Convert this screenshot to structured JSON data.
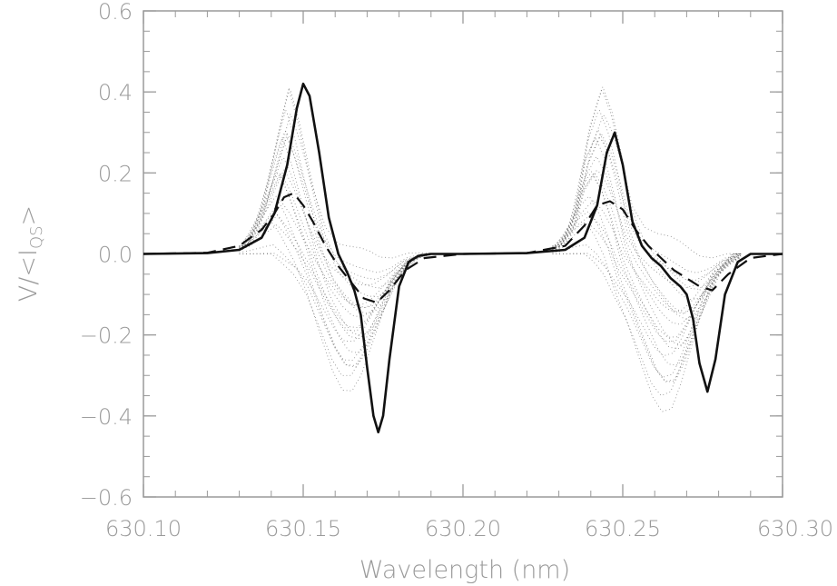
{
  "chart_data": {
    "type": "line",
    "xlabel": "Wavelength (nm)",
    "ylabel": "V/<I_QS>",
    "ylabel_main": "V/<I",
    "ylabel_sub": "QS",
    "ylabel_close": ">",
    "xlim": [
      630.1,
      630.3
    ],
    "ylim": [
      -0.6,
      0.6
    ],
    "x_ticks": [
      630.1,
      630.15,
      630.2,
      630.25,
      630.3
    ],
    "x_tick_labels": [
      "630.10",
      "630.15",
      "630.20",
      "630.25",
      "630.30"
    ],
    "y_ticks": [
      0.6,
      0.4,
      0.2,
      0.0,
      -0.2,
      -0.4,
      -0.6
    ],
    "y_tick_labels": [
      "0.6",
      "0.4",
      "0.2",
      "0.0",
      "−0.2",
      "−0.4",
      "−0.6"
    ],
    "grid": false,
    "legend": "none",
    "series": [
      {
        "style": "solid",
        "x": [
          630.1,
          630.12,
          630.13,
          630.137,
          630.141,
          630.145,
          630.148,
          630.15,
          630.152,
          630.155,
          630.158,
          630.161,
          630.164,
          630.166,
          630.168,
          630.17,
          630.172,
          630.1735,
          630.175,
          630.177,
          630.18,
          630.183,
          630.186,
          630.19,
          630.2,
          630.22,
          630.232,
          630.238,
          630.242,
          630.245,
          630.2475,
          630.25,
          630.253,
          630.256,
          630.259,
          630.262,
          630.265,
          630.268,
          630.27,
          630.272,
          630.274,
          630.2765,
          630.279,
          630.282,
          630.286,
          630.29,
          630.3
        ],
        "y": [
          0.0,
          0.002,
          0.01,
          0.04,
          0.1,
          0.22,
          0.36,
          0.42,
          0.39,
          0.25,
          0.09,
          0.0,
          -0.05,
          -0.09,
          -0.15,
          -0.28,
          -0.4,
          -0.44,
          -0.4,
          -0.26,
          -0.08,
          -0.02,
          -0.005,
          0.0,
          0.0,
          0.002,
          0.01,
          0.04,
          0.12,
          0.25,
          0.3,
          0.22,
          0.08,
          0.02,
          -0.01,
          -0.03,
          -0.06,
          -0.08,
          -0.1,
          -0.16,
          -0.27,
          -0.34,
          -0.26,
          -0.1,
          -0.02,
          0.0,
          0.0
        ]
      },
      {
        "style": "dashed",
        "x": [
          630.1,
          630.12,
          630.13,
          630.137,
          630.141,
          630.144,
          630.147,
          630.15,
          630.153,
          630.157,
          630.161,
          630.165,
          630.169,
          630.173,
          630.177,
          630.182,
          630.188,
          630.2,
          630.22,
          630.232,
          630.238,
          630.242,
          630.246,
          630.25,
          630.254,
          630.258,
          630.262,
          630.266,
          630.27,
          630.274,
          630.278,
          630.283,
          630.29,
          630.3
        ],
        "y": [
          0.0,
          0.003,
          0.02,
          0.06,
          0.1,
          0.14,
          0.15,
          0.12,
          0.08,
          0.02,
          -0.03,
          -0.07,
          -0.11,
          -0.12,
          -0.09,
          -0.04,
          -0.01,
          0.0,
          0.002,
          0.02,
          0.07,
          0.12,
          0.13,
          0.11,
          0.06,
          0.02,
          -0.01,
          -0.04,
          -0.06,
          -0.08,
          -0.09,
          -0.05,
          -0.01,
          0.0
        ]
      }
    ],
    "scatter_clouds": [
      {
        "style": "dotted",
        "x": [
          630.13,
          630.135,
          630.14,
          630.143,
          630.146,
          630.15,
          630.154,
          630.158,
          630.162,
          630.165,
          630.168,
          630.171,
          630.175,
          630.18,
          630.185,
          630.19
        ],
        "y_upper": [
          0.02,
          0.12,
          0.3,
          0.4,
          0.32,
          0.18,
          0.06,
          0.0,
          -0.02,
          -0.03,
          -0.04,
          -0.05,
          -0.04,
          -0.01,
          0.0,
          0.0
        ],
        "y_lower": [
          0.0,
          0.0,
          0.0,
          0.0,
          -0.02,
          -0.05,
          -0.1,
          -0.18,
          -0.26,
          -0.3,
          -0.3,
          -0.26,
          -0.18,
          -0.08,
          -0.02,
          0.0
        ]
      },
      {
        "style": "dotted",
        "x": [
          630.228,
          630.233,
          630.237,
          630.241,
          630.244,
          630.247,
          630.25,
          630.254,
          630.258,
          630.262,
          630.265,
          630.268,
          630.271,
          630.275,
          630.28,
          630.287
        ],
        "y_upper": [
          0.02,
          0.1,
          0.3,
          0.4,
          0.34,
          0.24,
          0.12,
          0.05,
          0.02,
          0.0,
          -0.02,
          -0.04,
          -0.05,
          -0.04,
          -0.01,
          0.0
        ],
        "y_lower": [
          0.0,
          0.0,
          0.0,
          0.0,
          -0.02,
          -0.05,
          -0.1,
          -0.16,
          -0.24,
          -0.32,
          -0.35,
          -0.34,
          -0.28,
          -0.18,
          -0.07,
          0.0
        ]
      }
    ]
  },
  "colors": {
    "axis": "#9a9a9a",
    "line": "#111111",
    "dots": "#555555"
  }
}
